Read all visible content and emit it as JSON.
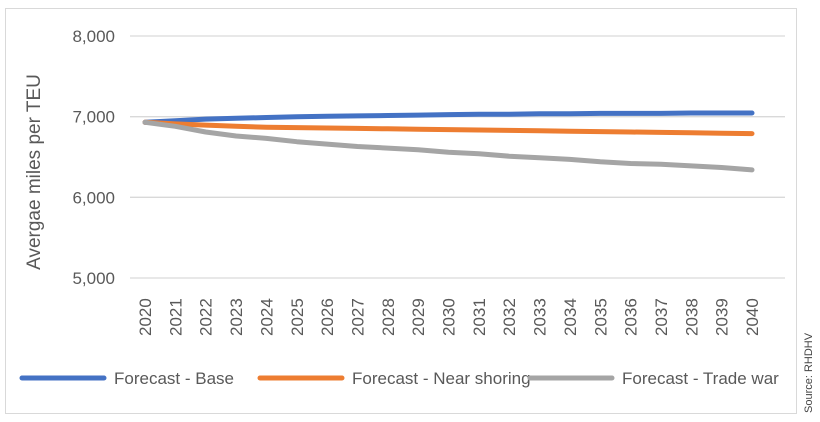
{
  "chart_data": {
    "type": "line",
    "title": "",
    "xlabel": "",
    "ylabel": "Avergae miles per TEU",
    "x": [
      "2020",
      "2021",
      "2022",
      "2023",
      "2024",
      "2025",
      "2026",
      "2027",
      "2028",
      "2029",
      "2030",
      "2031",
      "2032",
      "2033",
      "2034",
      "2035",
      "2036",
      "2037",
      "2038",
      "2039",
      "2040"
    ],
    "ylim": [
      5000,
      8000
    ],
    "yticks": [
      "5,000",
      "6,000",
      "7,000",
      "8,000"
    ],
    "ytick_values": [
      5000,
      6000,
      7000,
      8000
    ],
    "grid": true,
    "legend_position": "bottom",
    "series": [
      {
        "name": "Forecast - Base",
        "color": "#4472c4",
        "values": [
          6930,
          6950,
          6970,
          6980,
          6990,
          7000,
          7005,
          7010,
          7015,
          7020,
          7025,
          7030,
          7030,
          7035,
          7035,
          7040,
          7040,
          7040,
          7045,
          7045,
          7045
        ]
      },
      {
        "name": "Forecast - Near shoring",
        "color": "#ed7d31",
        "values": [
          6930,
          6910,
          6895,
          6880,
          6870,
          6865,
          6860,
          6855,
          6850,
          6845,
          6840,
          6835,
          6830,
          6825,
          6820,
          6815,
          6810,
          6805,
          6800,
          6795,
          6790
        ]
      },
      {
        "name": "Forecast - Trade war",
        "color": "#a5a5a5",
        "values": [
          6930,
          6880,
          6810,
          6760,
          6730,
          6690,
          6660,
          6630,
          6610,
          6590,
          6560,
          6540,
          6510,
          6490,
          6470,
          6440,
          6420,
          6410,
          6390,
          6370,
          6340
        ]
      }
    ]
  },
  "source": "Source: RHDHV"
}
